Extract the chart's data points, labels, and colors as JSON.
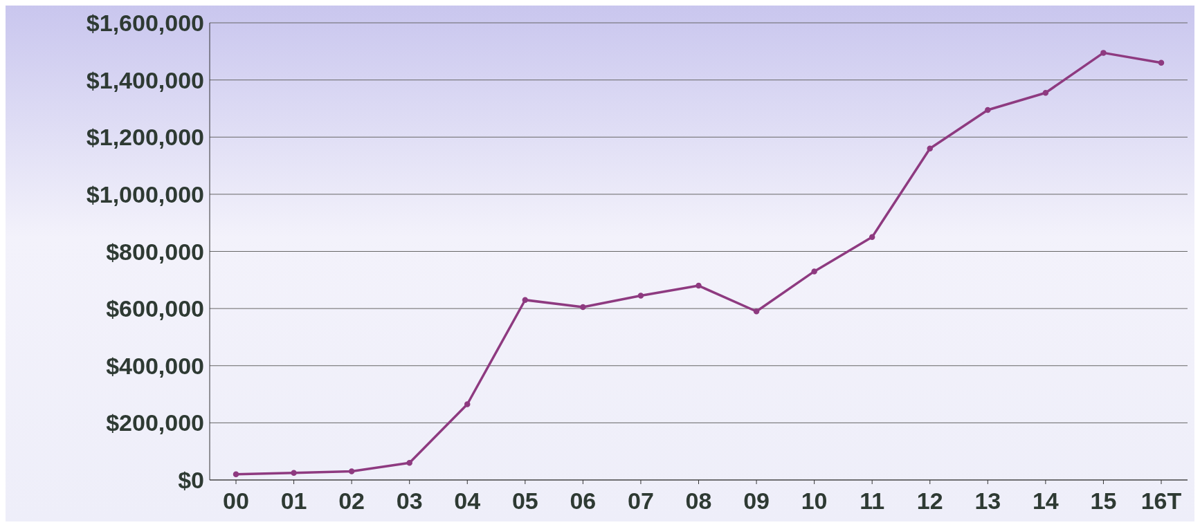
{
  "chart_data": {
    "type": "line",
    "categories": [
      "00",
      "01",
      "02",
      "03",
      "04",
      "05",
      "06",
      "07",
      "08",
      "09",
      "10",
      "11",
      "12",
      "13",
      "14",
      "15",
      "16T"
    ],
    "series": [
      {
        "color": "#8e3a80",
        "values": [
          20000,
          25000,
          30000,
          60000,
          265000,
          630000,
          605000,
          645000,
          680000,
          590000,
          730000,
          850000,
          1160000,
          1295000,
          1355000,
          1495000,
          1460000
        ]
      }
    ],
    "ylim": [
      0,
      1600000
    ],
    "yticks": [
      {
        "value": 0,
        "label": "$0"
      },
      {
        "value": 200000,
        "label": "$200,000"
      },
      {
        "value": 400000,
        "label": "$400,000"
      },
      {
        "value": 600000,
        "label": "$600,000"
      },
      {
        "value": 800000,
        "label": "$800,000"
      },
      {
        "value": 1000000,
        "label": "$1,000,000"
      },
      {
        "value": 1200000,
        "label": "$1,200,000"
      },
      {
        "value": 1400000,
        "label": "$1,400,000"
      },
      {
        "value": 1600000,
        "label": "$1,600,000"
      }
    ],
    "grid": "y",
    "marker": "circle",
    "line_style": "solid"
  }
}
